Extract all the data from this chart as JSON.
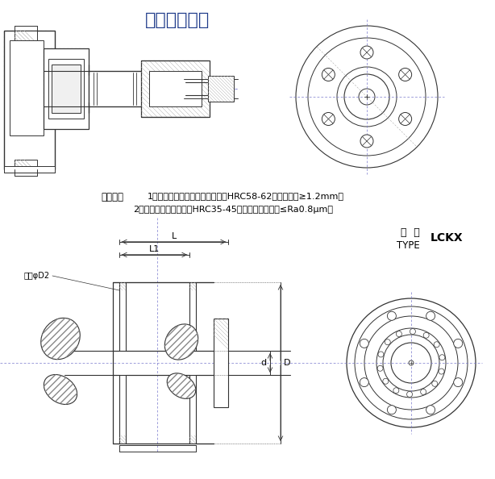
{
  "title_cn": "安装参考范例",
  "req_label": "安装要求",
  "req_line1": "1、磨削加工后的接触表面硬度为HRC58-62，硬化深度≥1.2mm；",
  "req_line2": "2、工作面内部硬度值为HRC35-45，工作面粗糙度须≤Ra0.8μm。",
  "type_cn": "型  号",
  "type_en": "TYPE",
  "type_code": "LCKX",
  "label_L": "L",
  "label_L1": "L1",
  "label_D": "D",
  "label_d": "d",
  "label_clamp": "钳卡φD2",
  "bg_color": "#ffffff",
  "line_color": "#333333",
  "blue_color": "#1e3a8a",
  "dim_color": "#555555",
  "title_fontsize": 16,
  "req_fontsize": 8,
  "label_fontsize": 8,
  "dim_fontsize": 7.5
}
